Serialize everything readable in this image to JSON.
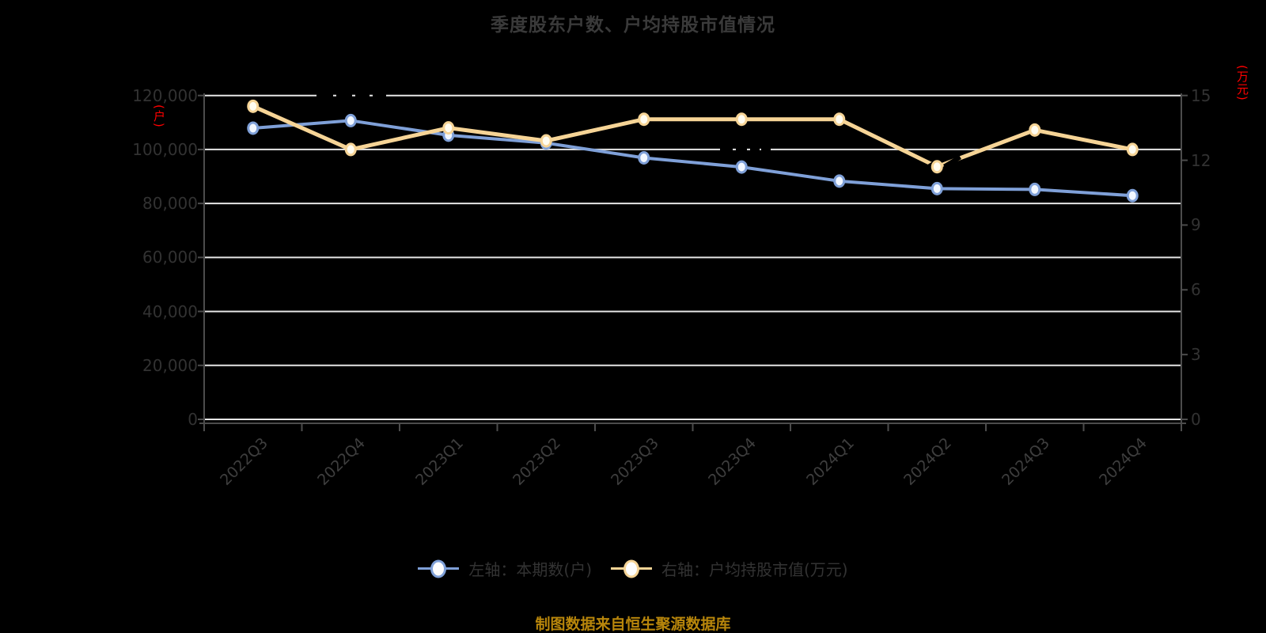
{
  "title": "季度股东户数、户均持股市值情况",
  "footer": "制图数据来自恒生聚源数据库",
  "left_axis": {
    "unit": "(户)",
    "ticks": [
      "0",
      "20,000",
      "40,000",
      "60,000",
      "80,000",
      "100,000",
      "120,000"
    ]
  },
  "right_axis": {
    "unit": "(万元)",
    "ticks": [
      "0",
      "3",
      "6",
      "9",
      "12",
      "15"
    ]
  },
  "legend": [
    {
      "label": "左轴：本期数(户)",
      "color": "#7fa0d8"
    },
    {
      "label": "右轴：户均持股市值(万元)",
      "color": "#f6d496"
    }
  ],
  "colors": {
    "background": "#000000",
    "series_blue": "#7fa0d8",
    "series_yellow": "#f6d496",
    "marker_fill_blue": "#f2f7ff",
    "marker_fill_yellow": "#fffcf0",
    "gridline": "#e6e6e6",
    "axis_line": "#4c4c4c",
    "axis_unit_red": "#ff0000",
    "footer_gold": "#b8860b",
    "tick_text": "#323232"
  },
  "chart_data": {
    "type": "line",
    "title": "季度股东户数、户均持股市值情况",
    "categories": [
      "2022Q3",
      "2022Q4",
      "2023Q1",
      "2023Q2",
      "2023Q3",
      "2023Q4",
      "2024Q1",
      "2024Q2",
      "2024Q3",
      "2024Q4"
    ],
    "series": [
      {
        "name": "左轴：本期数(户)",
        "axis": "left",
        "color": "#7fa0d8",
        "values": [
          107900,
          110700,
          105300,
          102400,
          96900,
          93500,
          88300,
          85500,
          85200,
          82900
        ]
      },
      {
        "name": "右轴：户均持股市值(万元)",
        "axis": "right",
        "color": "#f6d496",
        "values": [
          14.5,
          12.5,
          13.5,
          12.9,
          13.9,
          13.9,
          13.9,
          11.7,
          13.4,
          12.5
        ]
      }
    ],
    "left_range": [
      0,
      120000
    ],
    "right_range": [
      0,
      15
    ],
    "grid": true,
    "legend_position": "bottom"
  }
}
